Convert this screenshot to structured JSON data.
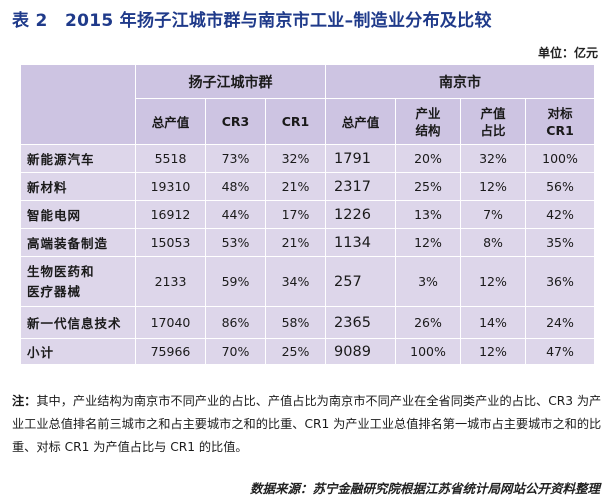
{
  "title": "表 2　2015 年扬子江城市群与南京市工业–制造业分布及比较",
  "unit": "单位：亿元",
  "groups": {
    "yz": "扬子江城市群",
    "nj": "南京市"
  },
  "subheaders": {
    "yz_output": "总产值",
    "yz_cr3": "CR3",
    "yz_cr1": "CR1",
    "nj_output": "总产值",
    "nj_struct": "产业结构",
    "nj_share": "产值占比",
    "nj_bench": "对标CR1"
  },
  "rows": [
    {
      "label": "新能源汽车",
      "yz_output": "5518",
      "yz_cr3": "73%",
      "yz_cr1": "32%",
      "nj_output": "1791",
      "nj_struct": "20%",
      "nj_share": "32%",
      "nj_bench": "100%"
    },
    {
      "label": "新材料",
      "yz_output": "19310",
      "yz_cr3": "48%",
      "yz_cr1": "21%",
      "nj_output": "2317",
      "nj_struct": "25%",
      "nj_share": "12%",
      "nj_bench": "56%"
    },
    {
      "label": "智能电网",
      "yz_output": "16912",
      "yz_cr3": "44%",
      "yz_cr1": "17%",
      "nj_output": "1226",
      "nj_struct": "13%",
      "nj_share": "7%",
      "nj_bench": "42%"
    },
    {
      "label": "高端装备制造",
      "yz_output": "15053",
      "yz_cr3": "53%",
      "yz_cr1": "21%",
      "nj_output": "1134",
      "nj_struct": "12%",
      "nj_share": "8%",
      "nj_bench": "35%"
    },
    {
      "label": "生物医药和医疗器械",
      "yz_output": "2133",
      "yz_cr3": "59%",
      "yz_cr1": "34%",
      "nj_output": "257",
      "nj_struct": "3%",
      "nj_share": "12%",
      "nj_bench": "36%"
    },
    {
      "label": "新一代信息技术",
      "yz_output": "17040",
      "yz_cr3": "86%",
      "yz_cr1": "58%",
      "nj_output": "2365",
      "nj_struct": "26%",
      "nj_share": "14%",
      "nj_bench": "24%"
    },
    {
      "label": "小计",
      "yz_output": "75966",
      "yz_cr3": "70%",
      "yz_cr1": "25%",
      "nj_output": "9089",
      "nj_struct": "100%",
      "nj_share": "12%",
      "nj_bench": "47%"
    }
  ],
  "note_label": "注：",
  "note_text": "其中，产业结构为南京市不同产业的占比、产值占比为南京市不同产业在全省同类产业的占比、CR3 为产业工业总值排名前三城市之和占主要城市之和的比重、CR1 为产业工业总值排名第一城市占主要城市之和的比重、对标 CR1 为产值占比与 CR1 的比值。",
  "source": "数据来源：苏宁金融研究院根据江苏省统计局网站公开资料整理"
}
